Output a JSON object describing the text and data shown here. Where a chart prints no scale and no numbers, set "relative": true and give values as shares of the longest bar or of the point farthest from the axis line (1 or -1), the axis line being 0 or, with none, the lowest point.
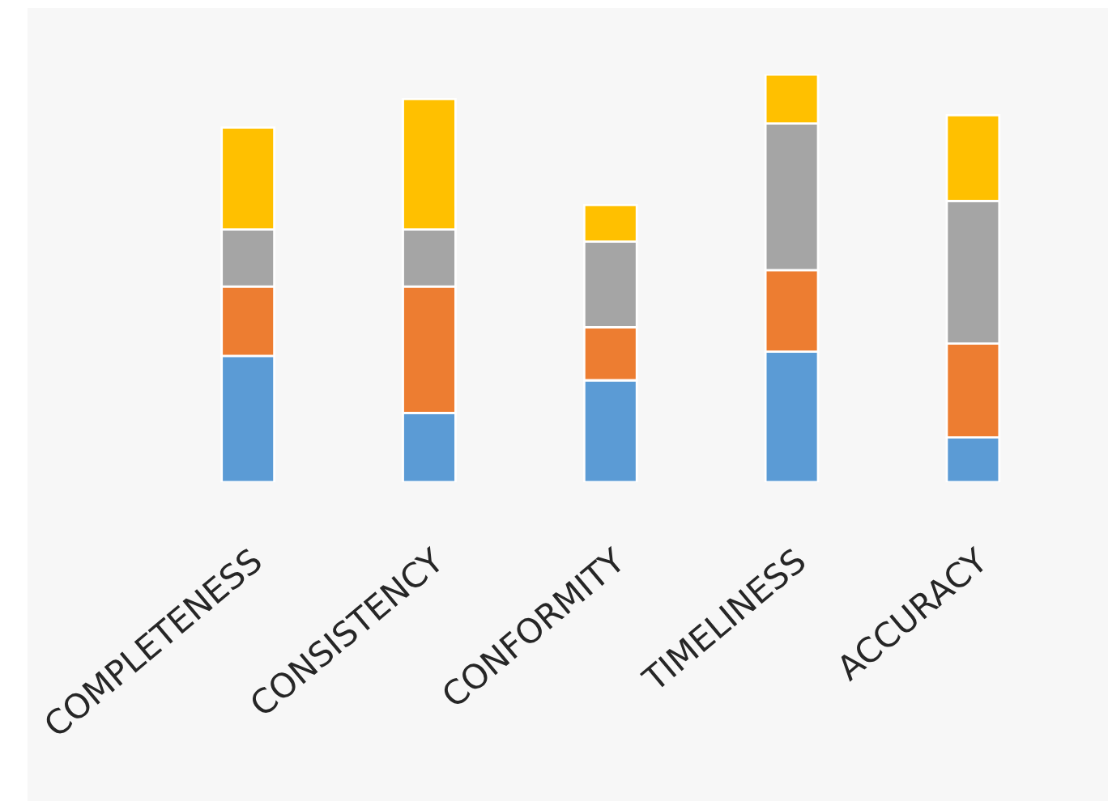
{
  "chart_data": {
    "type": "bar",
    "stacked": true,
    "relative": true,
    "categories": [
      "COMPLETENESS",
      "CONSISTENCY",
      "CONFORMITY",
      "TIMELINESS",
      "ACCURACY"
    ],
    "series": [
      {
        "color": "#5b9bd5",
        "values": [
          0.31,
          0.17,
          0.25,
          0.32,
          0.11
        ]
      },
      {
        "color": "#ed7d31",
        "values": [
          0.17,
          0.31,
          0.13,
          0.2,
          0.23
        ]
      },
      {
        "color": "#a5a5a5",
        "values": [
          0.14,
          0.14,
          0.21,
          0.36,
          0.35
        ]
      },
      {
        "color": "#ffc000",
        "values": [
          0.25,
          0.32,
          0.09,
          0.12,
          0.21
        ]
      }
    ]
  }
}
